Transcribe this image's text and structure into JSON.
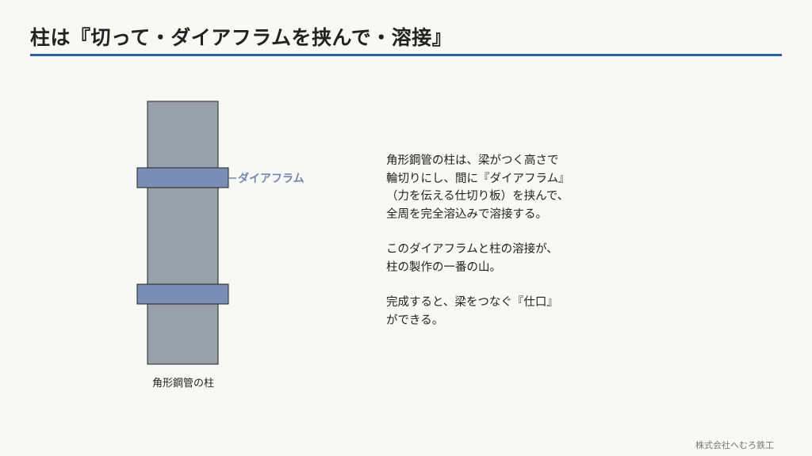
{
  "title": "柱は『切って・ダイアフラムを挟んで・溶接』",
  "diagram": {
    "diaphragm_label": "ダイアフラム",
    "column_label": "角形鋼管の柱"
  },
  "explanation": {
    "paragraphs": [
      [
        "角形鋼管の柱は、梁がつく高さで",
        "輪切りにし、間に『ダイアフラム』",
        "（力を伝える仕切り板）を挟んで、",
        "全周を完全溶込みで溶接する。"
      ],
      [
        "このダイアフラムと柱の溶接が、",
        "柱の製作の一番の山。"
      ],
      [
        "完成すると、梁をつなぐ『仕口』",
        "ができる。"
      ]
    ]
  },
  "footer": "株式会社へむろ鉄工",
  "colors": {
    "accent": "#2e5ea6",
    "column": "#98a1aa",
    "diaphragm": "#7a8db5",
    "diaphragm_label": "#7486b0"
  }
}
